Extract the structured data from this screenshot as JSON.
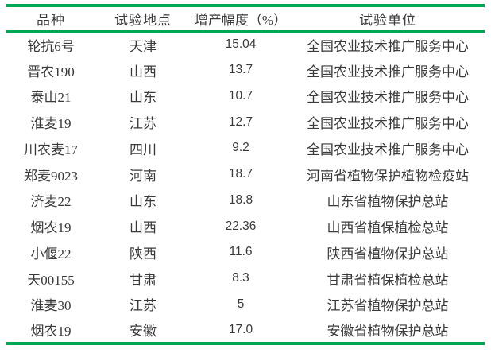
{
  "colors": {
    "rule_green": "#00a651",
    "text": "#3a3a3a",
    "background": "#ffffff"
  },
  "table": {
    "headers": [
      "品种",
      "试验地点",
      "增产幅度（%）",
      "试验单位"
    ],
    "column_keys": [
      "variety",
      "location",
      "yield-increase-pct",
      "institution"
    ],
    "rows": [
      [
        "轮抗6号",
        "天津",
        "15.04",
        "全国农业技术推广服务中心"
      ],
      [
        "晋农190",
        "山西",
        "13.7",
        "全国农业技术推广服务中心"
      ],
      [
        "泰山21",
        "山东",
        "10.7",
        "全国农业技术推广服务中心"
      ],
      [
        "淮麦19",
        "江苏",
        "12.7",
        "全国农业技术推广服务中心"
      ],
      [
        "川农麦17",
        "四川",
        "9.2",
        "全国农业技术推广服务中心"
      ],
      [
        "郑麦9023",
        "河南",
        "18.7",
        "河南省植物保护植物检疫站"
      ],
      [
        "济麦22",
        "山东",
        "18.8",
        "山东省植物保护总站"
      ],
      [
        "烟农19",
        "山西",
        "22.36",
        "山西省植保植检总站"
      ],
      [
        "小偃22",
        "陕西",
        "11.6",
        "陕西省植物保护总站"
      ],
      [
        "天00155",
        "甘肃",
        "8.3",
        "甘肃省植保植检总站"
      ],
      [
        "淮麦30",
        "江苏",
        "5",
        "江苏省植物保护总站"
      ],
      [
        "烟农19",
        "安徽",
        "17.0",
        "安徽省植物保护总站"
      ]
    ]
  }
}
